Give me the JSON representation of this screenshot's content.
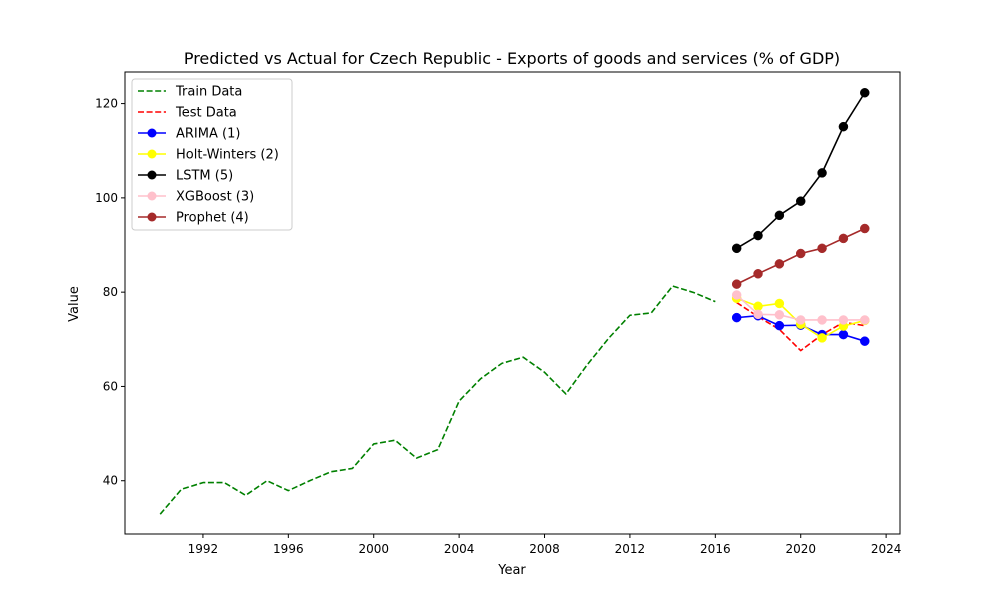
{
  "chart_data": {
    "type": "line",
    "title": "Predicted vs Actual for Czech Republic - Exports of goods and services (% of GDP)",
    "xlabel": "Year",
    "ylabel": "Value",
    "xlim": [
      1988.35,
      2024.65
    ],
    "ylim": [
      28.7,
      126.7
    ],
    "xticks": [
      1992,
      1996,
      2000,
      2004,
      2008,
      2012,
      2016,
      2020,
      2024
    ],
    "yticks": [
      40,
      60,
      80,
      100,
      120
    ],
    "grid": false,
    "legend_position": "top-left",
    "series": [
      {
        "name": "Train Data",
        "color": "#008000",
        "style": "dashed",
        "marker": false,
        "x": [
          1990,
          1991,
          1992,
          1993,
          1994,
          1995,
          1996,
          1997,
          1998,
          1999,
          2000,
          2001,
          2002,
          2003,
          2004,
          2005,
          2006,
          2007,
          2008,
          2009,
          2010,
          2011,
          2012,
          2013,
          2014,
          2015,
          2016
        ],
        "y": [
          32.9,
          38.2,
          39.6,
          39.6,
          36.9,
          40.0,
          37.9,
          40.0,
          41.9,
          42.6,
          47.8,
          48.6,
          44.8,
          46.6,
          56.9,
          61.6,
          64.9,
          66.2,
          63.0,
          58.4,
          64.6,
          70.2,
          75.1,
          75.6,
          81.3,
          79.9,
          78.0
        ]
      },
      {
        "name": "Test Data",
        "color": "#ff0000",
        "style": "dashed",
        "marker": false,
        "x": [
          2017,
          2018,
          2019,
          2020,
          2021,
          2022,
          2023
        ],
        "y": [
          77.8,
          74.8,
          72.1,
          67.6,
          71.0,
          73.6,
          72.9
        ]
      },
      {
        "name": "ARIMA (1)",
        "color": "#0000ff",
        "style": "solid",
        "marker": true,
        "x": [
          2017,
          2018,
          2019,
          2020,
          2021,
          2022,
          2023
        ],
        "y": [
          74.6,
          75.0,
          72.9,
          73.0,
          71.0,
          71.0,
          69.6
        ]
      },
      {
        "name": "Holt-Winters (2)",
        "color": "#ffff00",
        "style": "solid",
        "marker": true,
        "x": [
          2017,
          2018,
          2019,
          2020,
          2021,
          2022,
          2023
        ],
        "y": [
          78.7,
          77.0,
          77.6,
          73.2,
          70.3,
          72.8,
          74.0
        ]
      },
      {
        "name": "LSTM (5)",
        "color": "#000000",
        "style": "solid",
        "marker": true,
        "x": [
          2017,
          2018,
          2019,
          2020,
          2021,
          2022,
          2023
        ],
        "y": [
          89.3,
          92.0,
          96.3,
          99.3,
          105.3,
          115.1,
          122.3
        ]
      },
      {
        "name": "XGBoost (3)",
        "color": "#ffc0cb",
        "style": "solid",
        "marker": true,
        "x": [
          2017,
          2018,
          2019,
          2020,
          2021,
          2022,
          2023
        ],
        "y": [
          79.4,
          75.3,
          75.2,
          74.1,
          74.1,
          74.1,
          74.1
        ]
      },
      {
        "name": "Prophet (4)",
        "color": "#a52a2a",
        "style": "solid",
        "marker": true,
        "x": [
          2017,
          2018,
          2019,
          2020,
          2021,
          2022,
          2023
        ],
        "y": [
          81.7,
          83.9,
          86.0,
          88.2,
          89.3,
          91.4,
          93.5
        ]
      }
    ]
  }
}
